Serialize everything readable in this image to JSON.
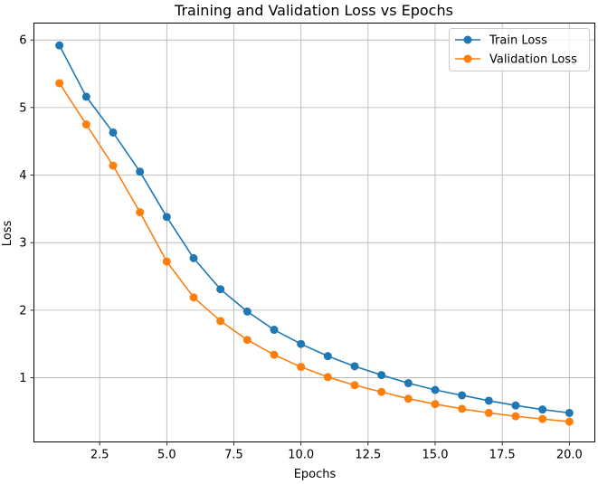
{
  "chart_data": {
    "type": "line",
    "title": "Training and Validation Loss vs Epochs",
    "xlabel": "Epochs",
    "ylabel": "Loss",
    "xlim": [
      0.05,
      20.95
    ],
    "ylim": [
      0.05,
      6.25
    ],
    "xticks": [
      2.5,
      5.0,
      7.5,
      10.0,
      12.5,
      15.0,
      17.5,
      20.0
    ],
    "xtick_labels": [
      "2.5",
      "5.0",
      "7.5",
      "10.0",
      "12.5",
      "15.0",
      "17.5",
      "20.0"
    ],
    "yticks": [
      1,
      2,
      3,
      4,
      5,
      6
    ],
    "ytick_labels": [
      "1",
      "2",
      "3",
      "4",
      "5",
      "6"
    ],
    "grid": true,
    "legend_position": "top-right",
    "x": [
      1,
      2,
      3,
      4,
      5,
      6,
      7,
      8,
      9,
      10,
      11,
      12,
      13,
      14,
      15,
      16,
      17,
      18,
      19,
      20
    ],
    "series": [
      {
        "name": "Train Loss",
        "color": "#1f77b4",
        "values": [
          5.92,
          5.16,
          4.63,
          4.05,
          3.38,
          2.77,
          2.31,
          1.98,
          1.71,
          1.5,
          1.32,
          1.17,
          1.04,
          0.92,
          0.82,
          0.74,
          0.66,
          0.59,
          0.53,
          0.48
        ]
      },
      {
        "name": "Validation Loss",
        "color": "#ff7f0e",
        "values": [
          5.36,
          4.75,
          4.14,
          3.45,
          2.72,
          2.19,
          1.84,
          1.56,
          1.34,
          1.16,
          1.01,
          0.89,
          0.79,
          0.69,
          0.61,
          0.54,
          0.48,
          0.43,
          0.39,
          0.35
        ]
      }
    ]
  }
}
